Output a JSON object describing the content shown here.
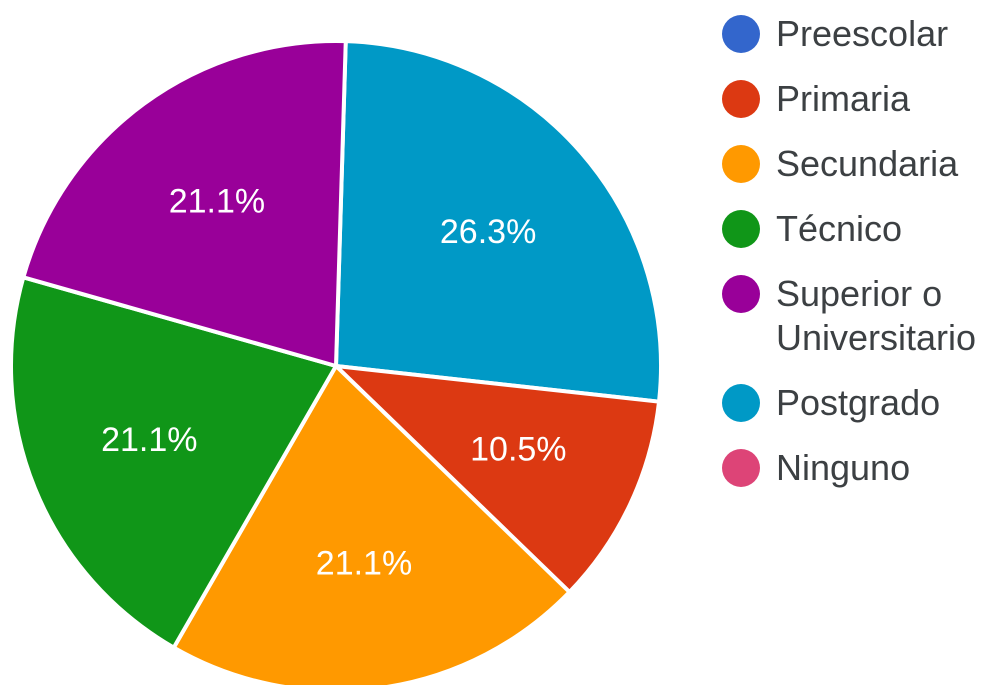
{
  "chart_data": {
    "type": "pie",
    "title": "",
    "categories": [
      "Preescolar",
      "Primaria",
      "Secundaria",
      "Técnico",
      "Superior o\nUniversitario",
      "Postgrado",
      "Ninguno"
    ],
    "values": [
      0,
      10.5,
      21.1,
      21.1,
      21.1,
      26.3,
      0
    ],
    "value_labels": [
      "",
      "10.5%",
      "21.1%",
      "21.1%",
      "21.1%",
      "26.3%",
      ""
    ],
    "colors": [
      "#3366cc",
      "#dc3912",
      "#ff9900",
      "#109618",
      "#990099",
      "#0099c6",
      "#dd4477"
    ],
    "start": "Postgrado segment starts at 12 o'clock, slices run clockwise",
    "legend_position": "right"
  }
}
